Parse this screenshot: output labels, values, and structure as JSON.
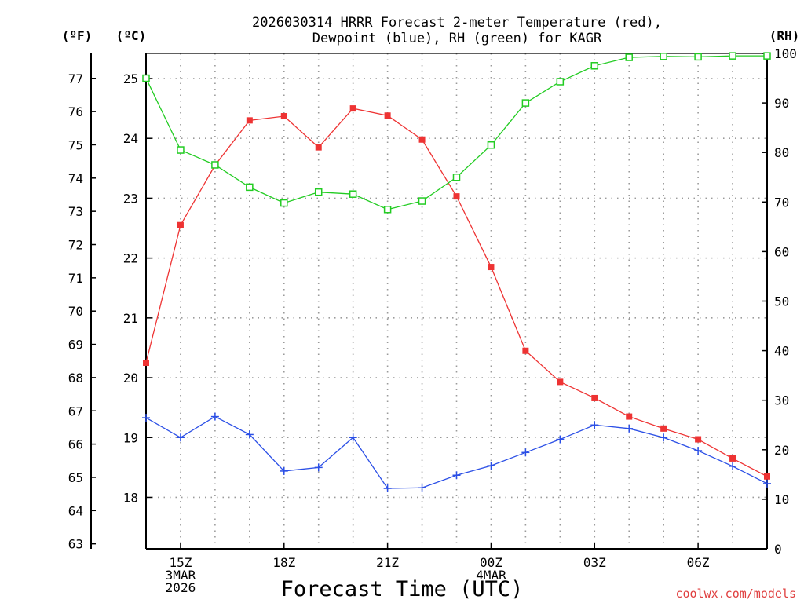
{
  "title_line1": "2026030314 HRRR Forecast 2-meter Temperature (red),",
  "title_line2": "Dewpoint (blue), RH (green) for KAGR",
  "credit": "coolwx.com/models",
  "colors": {
    "temperature": "#ee3333",
    "dewpoint": "#2b4fe6",
    "rh": "#22cc22"
  },
  "chart_data": {
    "type": "line",
    "title": "2026030314 HRRR Forecast 2-meter Temperature (red), Dewpoint (blue), RH (green) for KAGR",
    "xlabel": "Forecast Time (UTC)",
    "x_hours": [
      14,
      15,
      16,
      17,
      18,
      19,
      20,
      21,
      22,
      23,
      24,
      25,
      26,
      27,
      28,
      29,
      30,
      31,
      32
    ],
    "xlim": [
      14,
      32
    ],
    "x_ticks": [
      {
        "hour": 15,
        "lines": [
          "15Z",
          "3MAR",
          "2026"
        ]
      },
      {
        "hour": 18,
        "lines": [
          "18Z"
        ]
      },
      {
        "hour": 21,
        "lines": [
          "21Z"
        ]
      },
      {
        "hour": 24,
        "lines": [
          "00Z",
          "4MAR"
        ]
      },
      {
        "hour": 27,
        "lines": [
          "03Z"
        ]
      },
      {
        "hour": 30,
        "lines": [
          "06Z"
        ]
      }
    ],
    "axes": {
      "fahrenheit": {
        "label": "(ºF)",
        "range": [
          62.85,
          77.75
        ],
        "ticks": [
          63,
          64,
          65,
          66,
          67,
          68,
          69,
          70,
          71,
          72,
          73,
          74,
          75,
          76,
          77
        ]
      },
      "celsius": {
        "label": "(ºC)",
        "range": [
          17.14,
          25.42
        ],
        "ticks": [
          18,
          19,
          20,
          21,
          22,
          23,
          24,
          25
        ]
      },
      "rh": {
        "label": "(RH)",
        "range": [
          0,
          100
        ],
        "ticks": [
          0,
          10,
          20,
          30,
          40,
          50,
          60,
          70,
          80,
          90,
          100
        ]
      }
    },
    "series": [
      {
        "name": "Temperature (°C)",
        "color": "red",
        "marker": "filled-square",
        "values": [
          20.25,
          22.55,
          23.55,
          24.3,
          24.37,
          23.85,
          24.5,
          24.38,
          23.98,
          23.03,
          21.85,
          20.45,
          19.93,
          19.66,
          19.35,
          19.15,
          18.97,
          18.65,
          18.35
        ]
      },
      {
        "name": "Dewpoint (°C)",
        "color": "blue",
        "marker": "plus",
        "values": [
          19.33,
          19.0,
          19.35,
          19.05,
          18.44,
          18.5,
          19.0,
          18.15,
          18.16,
          18.37,
          18.53,
          18.75,
          18.97,
          19.21,
          19.15,
          19.0,
          18.78,
          18.52,
          18.23
        ]
      },
      {
        "name": "RH (%)",
        "color": "green",
        "marker": "open-square",
        "values": [
          95,
          80.5,
          77.5,
          73,
          69.8,
          72,
          71.6,
          68.5,
          70.2,
          75,
          81.5,
          90,
          94.3,
          97.5,
          99.2,
          99.4,
          99.3,
          99.5,
          99.5
        ]
      }
    ]
  }
}
